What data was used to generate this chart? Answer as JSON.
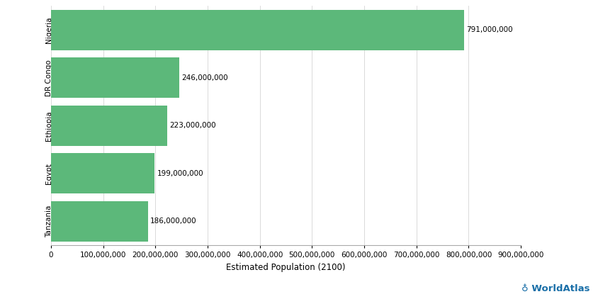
{
  "countries": [
    "Tanzania",
    "Egypt",
    "Ethiopia",
    "DR Congo",
    "Nigeria"
  ],
  "populations": [
    186000000,
    199000000,
    223000000,
    246000000,
    791000000
  ],
  "bar_color": "#5cb87a",
  "xlabel": "Estimated Population (2100)",
  "xlim": [
    0,
    900000000
  ],
  "xtick_step": 100000000,
  "background_color": "#ffffff",
  "bar_labels": [
    "186,000,000",
    "199,000,000",
    "223,000,000",
    "246,000,000",
    "791,000,000"
  ],
  "label_fontsize": 7.5,
  "axis_label_fontsize": 8.5,
  "tick_fontsize": 7.5,
  "watermark_text": "WorldAtlas",
  "watermark_color": "#1a6fa8",
  "bar_height": 0.85
}
